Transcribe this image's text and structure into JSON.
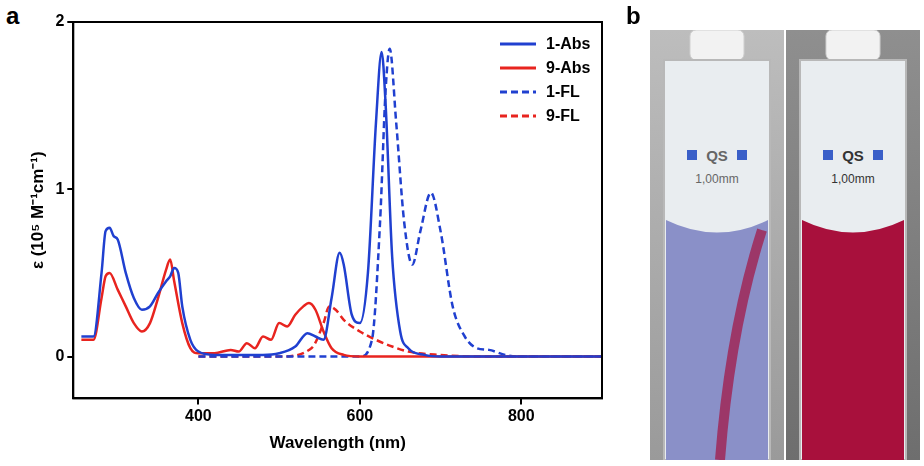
{
  "chart_data": {
    "type": "line",
    "panel": "a",
    "xlabel": "Wavelength (nm)",
    "ylabel": "ε (10⁵ M⁻¹cm⁻¹)",
    "xlim": [
      245,
      900
    ],
    "xticks": [
      400,
      600,
      800
    ],
    "ylim": [
      -0.25,
      2
    ],
    "yticks": [
      0,
      1,
      2
    ],
    "grid": false,
    "legend": "top right",
    "series": [
      {
        "name": "1-Abs",
        "color": "#2040d0",
        "line_style": "solid",
        "x": [
          255,
          260,
          270,
          280,
          285,
          290,
          295,
          300,
          310,
          320,
          330,
          340,
          350,
          360,
          365,
          370,
          375,
          380,
          390,
          400,
          420,
          450,
          480,
          500,
          520,
          535,
          545,
          555,
          565,
          575,
          580,
          590,
          600,
          610,
          620,
          627,
          632,
          640,
          650,
          660,
          680,
          700,
          800,
          900
        ],
        "values": [
          0.12,
          0.12,
          0.12,
          0.5,
          0.75,
          0.77,
          0.72,
          0.7,
          0.5,
          0.35,
          0.28,
          0.3,
          0.38,
          0.45,
          0.48,
          0.53,
          0.5,
          0.3,
          0.1,
          0.03,
          0.01,
          0.01,
          0.01,
          0.02,
          0.06,
          0.14,
          0.12,
          0.1,
          0.35,
          0.62,
          0.55,
          0.25,
          0.2,
          0.5,
          1.4,
          1.82,
          1.5,
          0.6,
          0.15,
          0.05,
          0.01,
          0,
          0,
          0
        ]
      },
      {
        "name": "9-Abs",
        "color": "#e8241f",
        "line_style": "solid",
        "x": [
          255,
          260,
          270,
          280,
          285,
          290,
          300,
          310,
          320,
          330,
          340,
          350,
          360,
          365,
          370,
          380,
          390,
          400,
          420,
          440,
          450,
          460,
          470,
          480,
          490,
          500,
          510,
          520,
          530,
          537,
          545,
          555,
          565,
          580,
          600,
          900
        ],
        "values": [
          0.1,
          0.1,
          0.1,
          0.35,
          0.48,
          0.5,
          0.4,
          0.3,
          0.2,
          0.15,
          0.2,
          0.35,
          0.52,
          0.58,
          0.45,
          0.2,
          0.05,
          0.02,
          0.02,
          0.04,
          0.03,
          0.08,
          0.05,
          0.12,
          0.1,
          0.2,
          0.18,
          0.25,
          0.3,
          0.32,
          0.28,
          0.15,
          0.05,
          0.01,
          0,
          0
        ]
      },
      {
        "name": "1-FL",
        "color": "#2040d0",
        "line_style": "dashed",
        "x": [
          400,
          600,
          615,
          625,
          632,
          637,
          645,
          655,
          665,
          675,
          688,
          700,
          715,
          730,
          745,
          760,
          780,
          800,
          900
        ],
        "values": [
          0,
          0,
          0.1,
          0.8,
          1.6,
          1.84,
          1.4,
          0.8,
          0.55,
          0.75,
          0.98,
          0.75,
          0.3,
          0.12,
          0.05,
          0.04,
          0.01,
          0,
          0
        ]
      },
      {
        "name": "9-FL",
        "color": "#e8241f",
        "line_style": "dashed",
        "x": [
          400,
          500,
          540,
          555,
          562,
          570,
          580,
          600,
          620,
          640,
          660,
          700,
          750,
          900
        ],
        "values": [
          0,
          0,
          0.05,
          0.2,
          0.3,
          0.28,
          0.22,
          0.15,
          0.1,
          0.06,
          0.03,
          0.01,
          0,
          0
        ]
      }
    ]
  },
  "photo": {
    "panel": "b",
    "cuvettes": [
      {
        "labels": [
          "QS",
          "1,00mm"
        ]
      },
      {
        "labels": [
          "QS",
          "1,00mm"
        ]
      }
    ]
  }
}
